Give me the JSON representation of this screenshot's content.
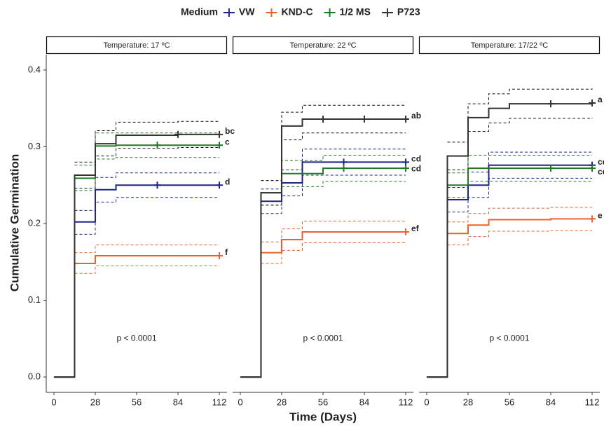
{
  "chart_data": {
    "type": "step",
    "legend_title": "Medium",
    "series": [
      {
        "name": "VW",
        "color": "#1c2587"
      },
      {
        "name": "KND-C",
        "color": "#e8622c"
      },
      {
        "name": "1/2 MS",
        "color": "#217a21"
      },
      {
        "name": "P723",
        "color": "#333333"
      }
    ],
    "y_label": "Cumulative Germination",
    "x_label": "Time (Days)",
    "ylim": [
      -0.02,
      0.42
    ],
    "yticks": [
      {
        "value": 0,
        "label": "0.0"
      },
      0.1,
      0.2,
      0.3,
      0.4
    ],
    "xlim": [
      -5.2,
      117.2
    ],
    "xticks": [
      0,
      28,
      56,
      84,
      112
    ],
    "x": [
      0,
      14,
      28,
      42,
      56,
      70,
      84,
      112
    ],
    "panels": [
      {
        "title": "Temperature: 17 ºC",
        "annotation": "p < 0.0001",
        "series": [
          {
            "values": [
              0,
              0.202,
              0.244,
              0.25,
              0.25,
              0.25,
              0.25,
              0.25
            ],
            "lower": [
              null,
              0.186,
              0.228,
              0.234,
              0.234,
              0.234,
              0.234,
              0.234
            ],
            "upper": [
              null,
              0.217,
              0.26,
              0.266,
              0.266,
              0.266,
              0.266,
              0.266
            ],
            "label": "d",
            "censor_x": [
              70,
              112
            ]
          },
          {
            "values": [
              0,
              0.148,
              0.158,
              0.158,
              0.158,
              0.158,
              0.158,
              0.158
            ],
            "lower": [
              null,
              0.135,
              0.145,
              0.145,
              0.145,
              0.145,
              0.145,
              0.145
            ],
            "upper": [
              null,
              0.162,
              0.172,
              0.172,
              0.172,
              0.172,
              0.172,
              0.172
            ],
            "label": "f",
            "censor_x": [
              112
            ]
          },
          {
            "values": [
              0,
              0.259,
              0.301,
              0.302,
              0.302,
              0.302,
              0.302,
              0.302
            ],
            "lower": [
              null,
              0.243,
              0.284,
              0.286,
              0.286,
              0.286,
              0.286,
              0.286
            ],
            "upper": [
              null,
              0.276,
              0.318,
              0.318,
              0.318,
              0.318,
              0.318,
              0.318
            ],
            "label": "c",
            "censor_x": [
              70,
              112
            ]
          },
          {
            "values": [
              0,
              0.263,
              0.304,
              0.315,
              0.315,
              0.315,
              0.316,
              0.316
            ],
            "lower": [
              null,
              0.246,
              0.288,
              0.298,
              0.298,
              0.298,
              0.299,
              0.299
            ],
            "upper": [
              null,
              0.28,
              0.321,
              0.332,
              0.332,
              0.332,
              0.333,
              0.333
            ],
            "label": "bc",
            "censor_x": [
              84,
              112
            ]
          }
        ]
      },
      {
        "title": "Temperature: 22 ºC",
        "annotation": "p < 0.0001",
        "series": [
          {
            "values": [
              0,
              0.229,
              0.253,
              0.28,
              0.28,
              0.28,
              0.28,
              0.28
            ],
            "lower": [
              null,
              0.213,
              0.236,
              0.263,
              0.263,
              0.263,
              0.263,
              0.263
            ],
            "upper": [
              null,
              0.245,
              0.27,
              0.297,
              0.297,
              0.297,
              0.297,
              0.297
            ],
            "label": "cd",
            "censor_x": [
              70,
              112
            ]
          },
          {
            "values": [
              0,
              0.162,
              0.179,
              0.189,
              0.189,
              0.189,
              0.189,
              0.189
            ],
            "lower": [
              null,
              0.148,
              0.165,
              0.175,
              0.175,
              0.175,
              0.175,
              0.175
            ],
            "upper": [
              null,
              0.176,
              0.193,
              0.203,
              0.203,
              0.203,
              0.203,
              0.203
            ],
            "label": "ef",
            "censor_x": [
              112
            ]
          },
          {
            "values": [
              0,
              0.24,
              0.265,
              0.265,
              0.272,
              0.272,
              0.272,
              0.272
            ],
            "lower": [
              null,
              0.224,
              0.248,
              0.248,
              0.255,
              0.255,
              0.255,
              0.255
            ],
            "upper": [
              null,
              0.256,
              0.282,
              0.282,
              0.289,
              0.289,
              0.289,
              0.289
            ],
            "label": "cd",
            "censor_x": [
              70,
              112
            ]
          },
          {
            "values": [
              0,
              0.24,
              0.327,
              0.336,
              0.336,
              0.336,
              0.336,
              0.336
            ],
            "lower": [
              null,
              0.224,
              0.309,
              0.318,
              0.318,
              0.318,
              0.318,
              0.318
            ],
            "upper": [
              null,
              0.256,
              0.345,
              0.354,
              0.354,
              0.354,
              0.354,
              0.354
            ],
            "label": "ab",
            "censor_x": [
              56,
              84,
              112
            ]
          }
        ]
      },
      {
        "title": "Temperature: 17/22 ºC",
        "annotation": "p < 0.0001",
        "series": [
          {
            "values": [
              0,
              0.231,
              0.25,
              0.276,
              0.276,
              0.276,
              0.276,
              0.276
            ],
            "lower": [
              null,
              0.215,
              0.234,
              0.259,
              0.259,
              0.259,
              0.259,
              0.259
            ],
            "upper": [
              null,
              0.247,
              0.267,
              0.293,
              0.293,
              0.293,
              0.293,
              0.293
            ],
            "label": "cd",
            "censor_x": [
              112
            ]
          },
          {
            "values": [
              0,
              0.187,
              0.198,
              0.205,
              0.205,
              0.205,
              0.206,
              0.206
            ],
            "lower": [
              null,
              0.172,
              0.183,
              0.19,
              0.19,
              0.19,
              0.191,
              0.191
            ],
            "upper": [
              null,
              0.202,
              0.213,
              0.22,
              0.22,
              0.22,
              0.221,
              0.221
            ],
            "label": "e",
            "censor_x": [
              112
            ]
          },
          {
            "values": [
              0,
              0.25,
              0.272,
              0.272,
              0.272,
              0.272,
              0.272,
              0.272
            ],
            "lower": [
              null,
              0.234,
              0.255,
              0.255,
              0.255,
              0.255,
              0.255,
              0.255
            ],
            "upper": [
              null,
              0.266,
              0.289,
              0.289,
              0.289,
              0.289,
              0.289,
              0.289
            ],
            "label": "cd",
            "censor_x": [
              84,
              112
            ]
          },
          {
            "values": [
              0,
              0.288,
              0.338,
              0.35,
              0.356,
              0.356,
              0.356,
              0.357
            ],
            "lower": [
              null,
              0.27,
              0.32,
              0.331,
              0.337,
              0.337,
              0.337,
              0.338
            ],
            "upper": [
              null,
              0.306,
              0.356,
              0.369,
              0.375,
              0.375,
              0.375,
              0.376
            ],
            "label": "a",
            "censor_x": [
              84,
              112
            ]
          }
        ]
      }
    ]
  }
}
